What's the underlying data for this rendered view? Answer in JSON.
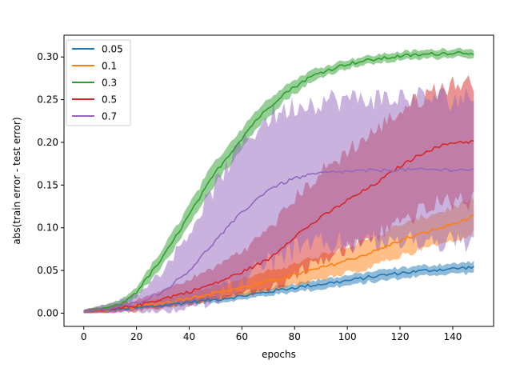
{
  "chart_data": {
    "type": "line",
    "title": "",
    "xlabel": "epochs",
    "ylabel": "abs(train error - test error)",
    "xlim": [
      -7.5,
      155.5
    ],
    "ylim": [
      -0.0155,
      0.3255
    ],
    "xticks": [
      0,
      20,
      40,
      60,
      80,
      100,
      120,
      140
    ],
    "xtick_labels": [
      "0",
      "20",
      "40",
      "60",
      "80",
      "100",
      "120",
      "140"
    ],
    "yticks": [
      0.0,
      0.05,
      0.1,
      0.15,
      0.2,
      0.25,
      0.3
    ],
    "ytick_labels": [
      "0.00",
      "0.05",
      "0.10",
      "0.15",
      "0.20",
      "0.25",
      "0.30"
    ],
    "grid": false,
    "legend_position": "top-left",
    "x_range": [
      0,
      148
    ],
    "series": [
      {
        "name": "0.05",
        "color": "#1f77b4",
        "mean": [
          [
            0,
            0.002
          ],
          [
            10,
            0.004
          ],
          [
            20,
            0.006
          ],
          [
            30,
            0.009
          ],
          [
            40,
            0.013
          ],
          [
            50,
            0.016
          ],
          [
            60,
            0.02
          ],
          [
            70,
            0.025
          ],
          [
            80,
            0.03
          ],
          [
            90,
            0.034
          ],
          [
            100,
            0.038
          ],
          [
            110,
            0.043
          ],
          [
            120,
            0.047
          ],
          [
            130,
            0.05
          ],
          [
            140,
            0.052
          ],
          [
            148,
            0.054
          ]
        ],
        "band": [
          [
            0,
            0.002
          ],
          [
            20,
            0.002
          ],
          [
            40,
            0.003
          ],
          [
            60,
            0.004
          ],
          [
            80,
            0.005
          ],
          [
            100,
            0.006
          ],
          [
            120,
            0.006
          ],
          [
            148,
            0.006
          ]
        ]
      },
      {
        "name": "0.1",
        "color": "#ff7f0e",
        "mean": [
          [
            0,
            0.002
          ],
          [
            10,
            0.004
          ],
          [
            20,
            0.008
          ],
          [
            30,
            0.012
          ],
          [
            40,
            0.018
          ],
          [
            50,
            0.024
          ],
          [
            60,
            0.03
          ],
          [
            70,
            0.037
          ],
          [
            80,
            0.045
          ],
          [
            90,
            0.053
          ],
          [
            100,
            0.062
          ],
          [
            110,
            0.072
          ],
          [
            120,
            0.085
          ],
          [
            130,
            0.095
          ],
          [
            140,
            0.104
          ],
          [
            148,
            0.113
          ]
        ],
        "band": [
          [
            0,
            0.002
          ],
          [
            20,
            0.004
          ],
          [
            40,
            0.007
          ],
          [
            60,
            0.01
          ],
          [
            80,
            0.013
          ],
          [
            100,
            0.016
          ],
          [
            120,
            0.018
          ],
          [
            148,
            0.02
          ]
        ]
      },
      {
        "name": "0.3",
        "color": "#2ca02c",
        "mean": [
          [
            0,
            0.002
          ],
          [
            10,
            0.007
          ],
          [
            15,
            0.012
          ],
          [
            20,
            0.025
          ],
          [
            25,
            0.045
          ],
          [
            30,
            0.065
          ],
          [
            35,
            0.09
          ],
          [
            40,
            0.115
          ],
          [
            45,
            0.14
          ],
          [
            50,
            0.165
          ],
          [
            55,
            0.185
          ],
          [
            60,
            0.205
          ],
          [
            65,
            0.225
          ],
          [
            70,
            0.24
          ],
          [
            75,
            0.255
          ],
          [
            80,
            0.265
          ],
          [
            85,
            0.275
          ],
          [
            90,
            0.282
          ],
          [
            95,
            0.287
          ],
          [
            100,
            0.292
          ],
          [
            110,
            0.297
          ],
          [
            120,
            0.301
          ],
          [
            130,
            0.303
          ],
          [
            140,
            0.305
          ],
          [
            148,
            0.305
          ]
        ],
        "band": [
          [
            0,
            0.002
          ],
          [
            20,
            0.006
          ],
          [
            30,
            0.01
          ],
          [
            40,
            0.013
          ],
          [
            50,
            0.013
          ],
          [
            60,
            0.012
          ],
          [
            70,
            0.01
          ],
          [
            80,
            0.008
          ],
          [
            100,
            0.005
          ],
          [
            148,
            0.005
          ]
        ]
      },
      {
        "name": "0.5",
        "color": "#d62728",
        "mean": [
          [
            0,
            0.002
          ],
          [
            10,
            0.004
          ],
          [
            20,
            0.009
          ],
          [
            30,
            0.017
          ],
          [
            40,
            0.025
          ],
          [
            50,
            0.035
          ],
          [
            60,
            0.048
          ],
          [
            70,
            0.063
          ],
          [
            80,
            0.09
          ],
          [
            90,
            0.112
          ],
          [
            100,
            0.132
          ],
          [
            110,
            0.15
          ],
          [
            120,
            0.172
          ],
          [
            130,
            0.19
          ],
          [
            140,
            0.2
          ],
          [
            148,
            0.201
          ]
        ],
        "band": [
          [
            0,
            0.002
          ],
          [
            20,
            0.006
          ],
          [
            40,
            0.014
          ],
          [
            60,
            0.025
          ],
          [
            80,
            0.045
          ],
          [
            100,
            0.058
          ],
          [
            120,
            0.065
          ],
          [
            148,
            0.07
          ]
        ]
      },
      {
        "name": "0.7",
        "color": "#9467bd",
        "mean": [
          [
            0,
            0.002
          ],
          [
            10,
            0.005
          ],
          [
            20,
            0.012
          ],
          [
            30,
            0.025
          ],
          [
            40,
            0.05
          ],
          [
            50,
            0.085
          ],
          [
            60,
            0.118
          ],
          [
            70,
            0.145
          ],
          [
            80,
            0.158
          ],
          [
            90,
            0.164
          ],
          [
            100,
            0.166
          ],
          [
            110,
            0.167
          ],
          [
            120,
            0.168
          ],
          [
            130,
            0.168
          ],
          [
            140,
            0.168
          ],
          [
            148,
            0.168
          ]
        ],
        "band": [
          [
            0,
            0.002
          ],
          [
            20,
            0.01
          ],
          [
            30,
            0.025
          ],
          [
            40,
            0.045
          ],
          [
            50,
            0.065
          ],
          [
            60,
            0.08
          ],
          [
            70,
            0.085
          ],
          [
            80,
            0.085
          ],
          [
            100,
            0.084
          ],
          [
            148,
            0.084
          ]
        ]
      }
    ]
  }
}
